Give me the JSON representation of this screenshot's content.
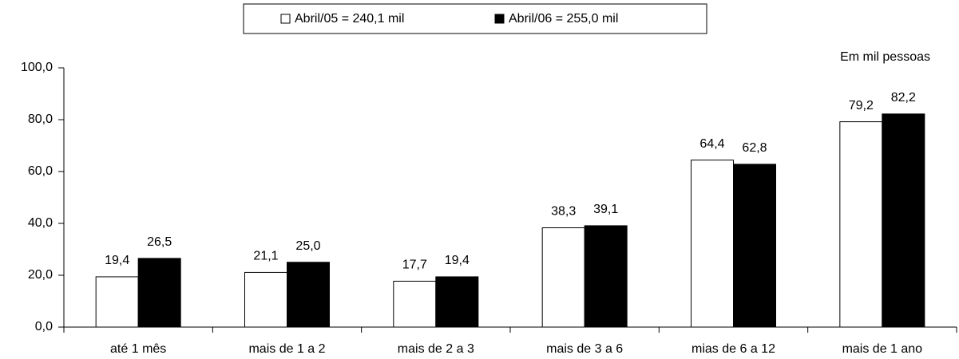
{
  "chart_data": {
    "type": "bar",
    "annotation": "Em mil pessoas",
    "categories": [
      "até 1 mês",
      "mais de 1 a 2",
      "mais de 2 a 3",
      "mais de 3 a 6",
      "mias de 6 a 12",
      "mais de 1 ano"
    ],
    "series": [
      {
        "name": "Abril/05 = 240,1 mil",
        "color": "#ffffff",
        "values": [
          19.4,
          21.1,
          17.7,
          38.3,
          64.4,
          79.2
        ],
        "value_labels": [
          "19,4",
          "21,1",
          "17,7",
          "38,3",
          "64,4",
          "79,2"
        ]
      },
      {
        "name": "Abril/06 = 255,0 mil",
        "color": "#000000",
        "values": [
          26.5,
          25.0,
          19.4,
          39.1,
          62.8,
          82.2
        ],
        "value_labels": [
          "26,5",
          "25,0",
          "19,4",
          "39,1",
          "62,8",
          "82,2"
        ]
      }
    ],
    "ylim": [
      0,
      100
    ],
    "yticks": [
      {
        "value": 0,
        "label": "0,0"
      },
      {
        "value": 20,
        "label": "20,0"
      },
      {
        "value": 40,
        "label": "40,0"
      },
      {
        "value": 60,
        "label": "60,0"
      },
      {
        "value": 80,
        "label": "80,0"
      },
      {
        "value": 100,
        "label": "100,0"
      }
    ],
    "grid": false,
    "legend": "top"
  }
}
